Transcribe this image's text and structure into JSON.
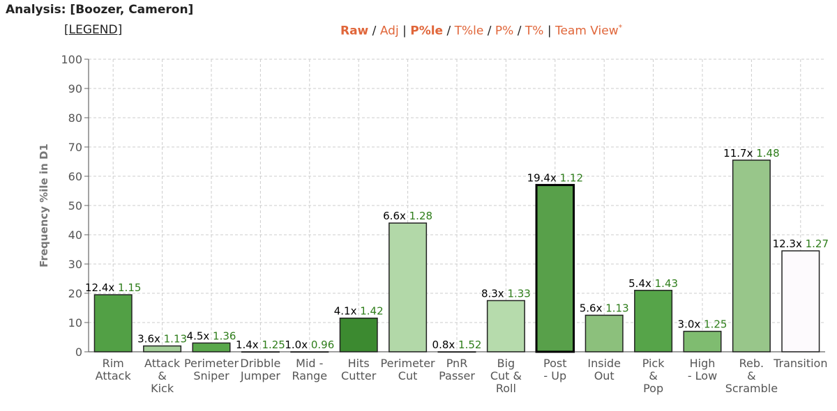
{
  "header": {
    "title": "Analysis: [Boozer, Cameron]",
    "legend_link": "[LEGEND]"
  },
  "view_options": [
    {
      "label": "Raw",
      "bold": true
    },
    {
      "label": "Adj",
      "bold": false
    },
    {
      "label": "P%le",
      "bold": true
    },
    {
      "label": "T%le",
      "bold": false
    },
    {
      "label": "P%",
      "bold": false
    },
    {
      "label": "T%",
      "bold": false
    },
    {
      "label": "Team View",
      "bold": false
    }
  ],
  "view_separators": [
    " / ",
    " | ",
    " / ",
    " / ",
    " / ",
    " | "
  ],
  "view_footnote": "*",
  "colors": {
    "multiplier_text": "#000000",
    "ppp_text": "#2e7d1a",
    "grid": "#cccccc",
    "axis": "#666666"
  },
  "chart_data": {
    "type": "bar",
    "ylabel": "Frequency %ile in D1",
    "ylim": [
      0,
      100
    ],
    "yticks": [
      0,
      10,
      20,
      30,
      40,
      50,
      60,
      70,
      80,
      90,
      100
    ],
    "grid": true,
    "categories": [
      [
        "Rim",
        "Attack"
      ],
      [
        "Attack",
        "&",
        "Kick"
      ],
      [
        "Perimeter",
        "Sniper"
      ],
      [
        "Dribble",
        "Jumper"
      ],
      [
        "Mid -",
        "Range"
      ],
      [
        "Hits",
        "Cutter"
      ],
      [
        "Perimeter",
        "Cut"
      ],
      [
        "PnR",
        "Passer"
      ],
      [
        "Big",
        "Cut &",
        "Roll"
      ],
      [
        "Post",
        "- Up"
      ],
      [
        "Inside",
        "Out"
      ],
      [
        "Pick",
        "&",
        "Pop"
      ],
      [
        "High",
        "- Low"
      ],
      [
        "Reb.",
        "&",
        "Scramble"
      ],
      [
        "Transition"
      ]
    ],
    "values": [
      19.5,
      2,
      3,
      0,
      0,
      11.5,
      44,
      0,
      17.5,
      57,
      12.5,
      21,
      7,
      65.5,
      34.5
    ],
    "multipliers": [
      "12.4x",
      "3.6x",
      "4.5x",
      "1.4x",
      "1.0x",
      "4.1x",
      "6.6x",
      "0.8x",
      "8.3x",
      "19.4x",
      "5.6x",
      "5.4x",
      "3.0x",
      "11.7x",
      "12.3x"
    ],
    "ppp": [
      "1.15",
      "1.13",
      "1.36",
      "1.25",
      "0.96",
      "1.42",
      "1.28",
      "1.52",
      "1.33",
      "1.12",
      "1.13",
      "1.43",
      "1.25",
      "1.48",
      "1.27"
    ],
    "bar_colors": [
      "#52a045",
      "#a3cf98",
      "#5aa84c",
      "#3e8a34",
      "#3e8a34",
      "#3c8a30",
      "#b2d8a8",
      "#3e8a34",
      "#b6dbac",
      "#58a04a",
      "#8cc07c",
      "#56a449",
      "#7fbc70",
      "#98c68a",
      "#fdfafd"
    ],
    "highlight_index": 9
  }
}
